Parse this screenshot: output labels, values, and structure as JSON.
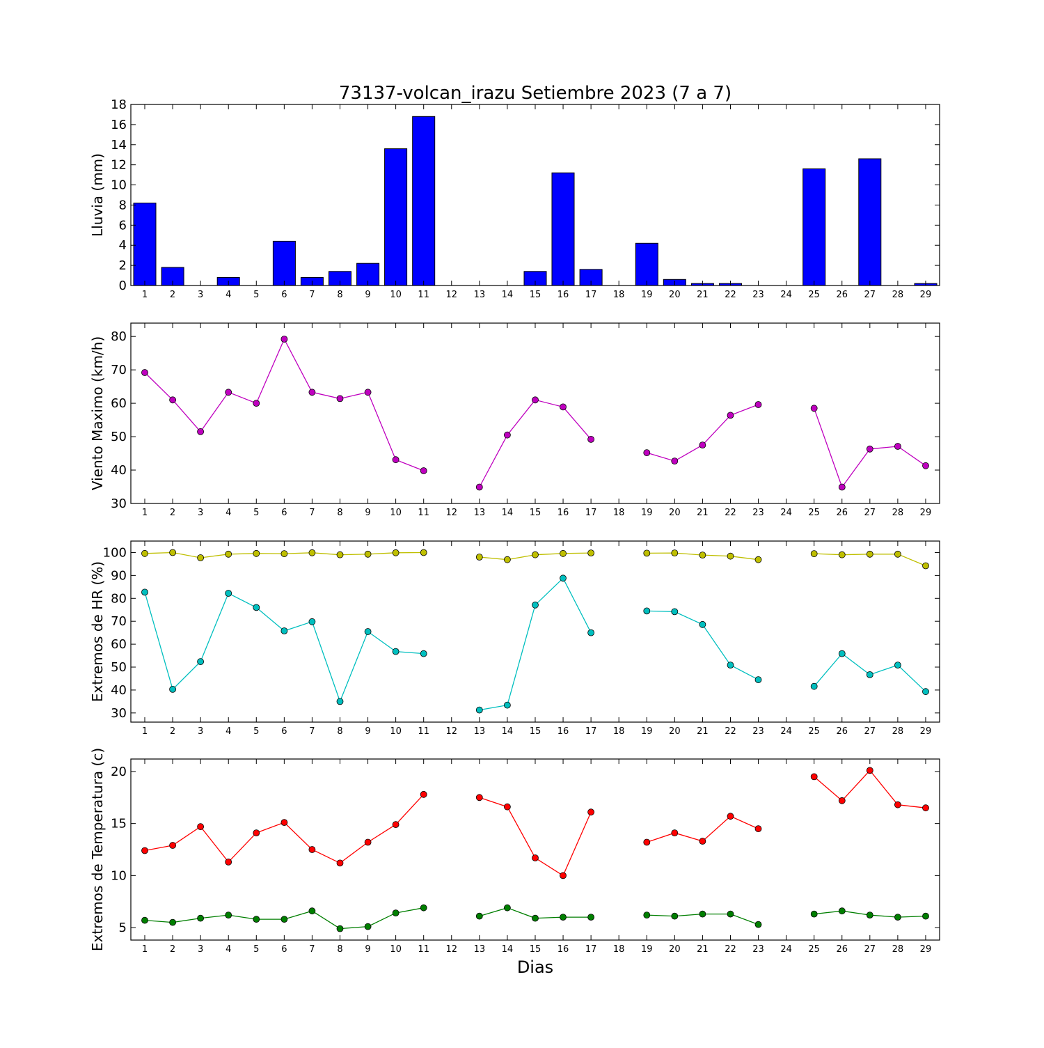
{
  "figure": {
    "title": "73137-volcan_irazu Setiembre 2023  (7 a 7)",
    "xlabel": "Dias"
  },
  "chart_data": [
    {
      "type": "bar",
      "ylabel": "Lluvia (mm)",
      "ylim": [
        0,
        18
      ],
      "yticks": [
        0,
        2,
        4,
        6,
        8,
        10,
        12,
        14,
        16,
        18
      ],
      "categories": [
        "1",
        "2",
        "3",
        "4",
        "5",
        "6",
        "7",
        "8",
        "9",
        "10",
        "11",
        "12",
        "13",
        "14",
        "15",
        "16",
        "17",
        "18",
        "19",
        "20",
        "21",
        "22",
        "23",
        "24",
        "25",
        "26",
        "27",
        "28",
        "29"
      ],
      "values": [
        8.2,
        1.8,
        0,
        0.8,
        0,
        4.4,
        0.8,
        1.4,
        2.2,
        13.6,
        16.8,
        0,
        0,
        0,
        1.4,
        11.2,
        1.6,
        0,
        4.2,
        0.6,
        0.2,
        0.2,
        0,
        0,
        11.6,
        0,
        12.6,
        0,
        0.2
      ],
      "color": "#0000ff"
    },
    {
      "type": "line",
      "ylabel": "Viento Maximo (km/h)",
      "ylim": [
        30,
        84
      ],
      "yticks": [
        30,
        40,
        50,
        60,
        70,
        80
      ],
      "categories": [
        "1",
        "2",
        "3",
        "4",
        "5",
        "6",
        "7",
        "8",
        "9",
        "10",
        "11",
        "12",
        "13",
        "14",
        "15",
        "16",
        "17",
        "18",
        "19",
        "20",
        "21",
        "22",
        "23",
        "24",
        "25",
        "26",
        "27",
        "28",
        "29"
      ],
      "series": [
        {
          "color": "#bf00bf",
          "values": [
            69.2,
            61.0,
            51.5,
            63.3,
            60.0,
            79.2,
            63.3,
            61.4,
            63.3,
            43.1,
            39.8,
            null,
            34.9,
            50.5,
            61.0,
            58.9,
            49.2,
            null,
            45.2,
            42.7,
            47.5,
            56.4,
            59.6,
            null,
            58.5,
            34.9,
            46.3,
            47.1,
            41.3
          ]
        }
      ]
    },
    {
      "type": "line",
      "ylabel": "Extremos de HR (%)",
      "ylim": [
        26,
        105
      ],
      "yticks": [
        30,
        40,
        50,
        60,
        70,
        80,
        90,
        100
      ],
      "categories": [
        "1",
        "2",
        "3",
        "4",
        "5",
        "6",
        "7",
        "8",
        "9",
        "10",
        "11",
        "12",
        "13",
        "14",
        "15",
        "16",
        "17",
        "18",
        "19",
        "20",
        "21",
        "22",
        "23",
        "24",
        "25",
        "26",
        "27",
        "28",
        "29"
      ],
      "series": [
        {
          "color": "#bfbf00",
          "values": [
            99.6,
            100.0,
            97.7,
            99.3,
            99.6,
            99.5,
            99.9,
            99.0,
            99.3,
            99.9,
            100.0,
            null,
            98.0,
            96.9,
            99.0,
            99.6,
            99.8,
            null,
            99.7,
            99.8,
            98.9,
            98.4,
            96.9,
            null,
            99.5,
            99.0,
            99.3,
            99.3,
            94.2
          ]
        },
        {
          "color": "#00bfbf",
          "values": [
            82.7,
            40.3,
            52.4,
            82.2,
            76.0,
            65.8,
            69.8,
            35.0,
            65.5,
            56.8,
            55.9,
            null,
            31.3,
            33.4,
            77.1,
            88.8,
            65.0,
            null,
            74.5,
            74.2,
            68.6,
            50.9,
            44.5,
            null,
            41.6,
            55.9,
            46.7,
            50.9,
            39.3
          ]
        }
      ]
    },
    {
      "type": "line",
      "ylabel": "Extremos de Temperatura (c)",
      "ylim": [
        3.8,
        21.2
      ],
      "yticks": [
        5,
        10,
        15,
        20
      ],
      "categories": [
        "1",
        "2",
        "3",
        "4",
        "5",
        "6",
        "7",
        "8",
        "9",
        "10",
        "11",
        "12",
        "13",
        "14",
        "15",
        "16",
        "17",
        "18",
        "19",
        "20",
        "21",
        "22",
        "23",
        "24",
        "25",
        "26",
        "27",
        "28",
        "29"
      ],
      "series": [
        {
          "color": "#ff0000",
          "values": [
            12.4,
            12.9,
            14.7,
            11.3,
            14.1,
            15.1,
            12.5,
            11.2,
            13.2,
            14.9,
            17.8,
            null,
            17.5,
            16.6,
            11.7,
            10.0,
            16.1,
            null,
            13.2,
            14.1,
            13.3,
            15.7,
            14.5,
            null,
            19.5,
            17.2,
            20.1,
            16.8,
            16.5
          ]
        },
        {
          "color": "#007f00",
          "values": [
            5.7,
            5.5,
            5.9,
            6.2,
            5.8,
            5.8,
            6.6,
            4.9,
            5.1,
            6.4,
            6.9,
            null,
            6.1,
            6.9,
            5.9,
            6.0,
            6.0,
            null,
            6.2,
            6.1,
            6.3,
            6.3,
            5.3,
            null,
            6.3,
            6.6,
            6.2,
            6.0,
            6.1
          ]
        }
      ]
    }
  ]
}
